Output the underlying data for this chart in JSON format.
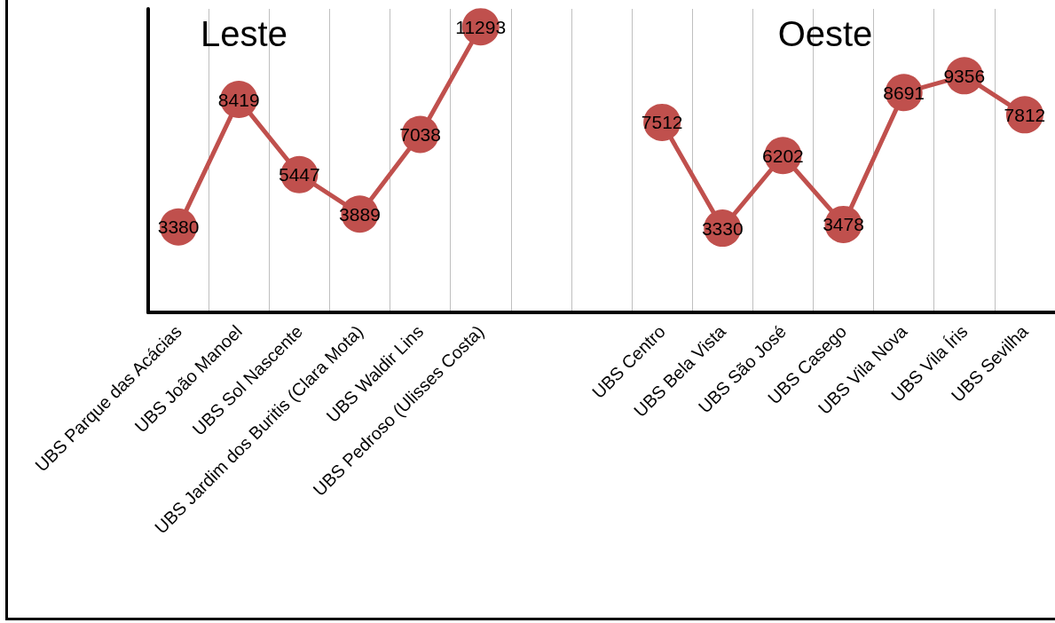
{
  "chart_data": {
    "type": "line",
    "categories": [
      "UBS Parque das Acácias",
      "UBS João Manoel",
      "UBS Sol Nascente",
      "UBS Jardim dos Buritis (Clara Mota)",
      "UBS Waldir Lins",
      "UBS Pedroso (Ulisses Costa)",
      null,
      null,
      "UBS Centro",
      "UBS Bela Vista",
      "UBS São José",
      "UBS Casego",
      "UBS Vila Nova",
      "UBS Vila Íris",
      "UBS Sevilha"
    ],
    "series": [
      {
        "color": "#c0504d",
        "values": [
          3380,
          8419,
          5447,
          3889,
          7038,
          11293,
          null,
          null,
          7512,
          3330,
          6202,
          3478,
          8691,
          9356,
          7812
        ]
      }
    ],
    "annotations": [
      "Leste",
      "Oeste"
    ],
    "data_labels": true,
    "marker": "circle",
    "line_style": "solid",
    "grid": "x",
    "tick_labels": "x"
  }
}
